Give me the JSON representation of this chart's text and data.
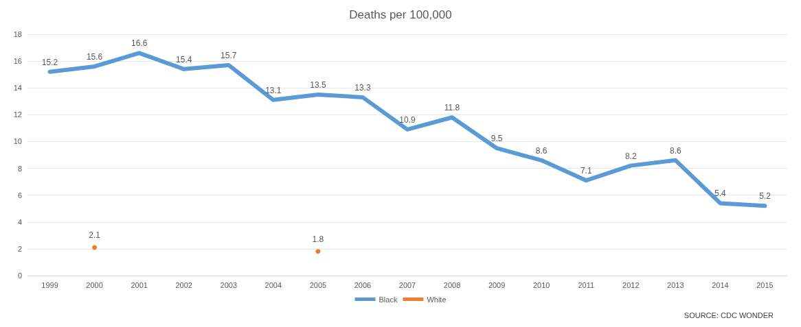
{
  "chart_data": {
    "type": "line",
    "title": "Deaths per 100,000",
    "categories": [
      "1999",
      "2000",
      "2001",
      "2002",
      "2003",
      "2004",
      "2005",
      "2006",
      "2007",
      "2008",
      "2009",
      "2010",
      "2011",
      "2012",
      "2013",
      "2014",
      "2015"
    ],
    "series": [
      {
        "name": "Black",
        "color": "#5b9bd5",
        "values": [
          15.2,
          15.6,
          16.6,
          15.4,
          15.7,
          13.1,
          13.5,
          13.3,
          10.9,
          11.8,
          9.5,
          8.6,
          7.1,
          8.2,
          8.6,
          5.4,
          5.2
        ]
      },
      {
        "name": "White",
        "type": "scatter",
        "color": "#ed7d31",
        "values": [
          null,
          2.1,
          null,
          null,
          null,
          null,
          1.8,
          null,
          null,
          null,
          null,
          null,
          null,
          null,
          null,
          null,
          null
        ]
      }
    ],
    "ylim": [
      0,
      18
    ],
    "yticks": [
      0,
      2,
      4,
      6,
      8,
      10,
      12,
      14,
      16,
      18
    ],
    "grid": "y",
    "legend": "bottom",
    "data_labels": true,
    "marker": "none",
    "annotations": [
      "SOURCE: CDC WONDER"
    ]
  }
}
